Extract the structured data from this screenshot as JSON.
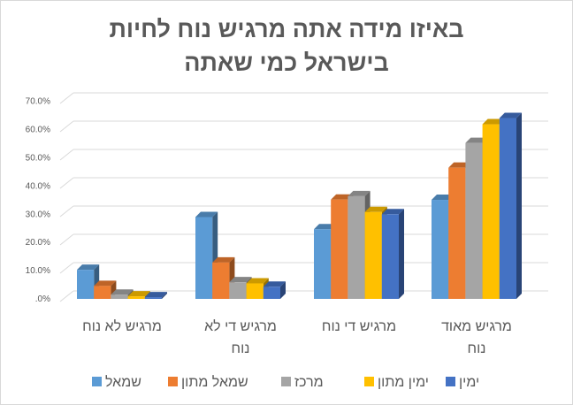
{
  "chart_data": {
    "type": "bar",
    "variant": "3d-clustered-column",
    "title": [
      "באיזו מידה אתה מרגיש נוח לחיות",
      "בישראל כמי שאתה"
    ],
    "categories": [
      [
        "מרגיש לא נוח"
      ],
      [
        "מרגיש די לא",
        "נוח"
      ],
      [
        "מרגיש די נוח"
      ],
      [
        "מרגיש מאוד",
        "נוח"
      ]
    ],
    "series": [
      {
        "name": "שמאל",
        "color": "#5b9bd5",
        "values": [
          10.3,
          29.0,
          24.7,
          35.1
        ]
      },
      {
        "name": "שמאל מתון",
        "color": "#ed7d31",
        "values": [
          4.6,
          12.9,
          35.2,
          46.5
        ]
      },
      {
        "name": "מרכז",
        "color": "#a5a5a5",
        "values": [
          1.5,
          5.9,
          36.4,
          55.3
        ]
      },
      {
        "name": "ימין מתון",
        "color": "#ffc000",
        "values": [
          0.9,
          5.5,
          30.8,
          61.9
        ]
      },
      {
        "name": "ימין",
        "color": "#4472c4",
        "values": [
          0.6,
          4.3,
          30.0,
          64.1
        ]
      }
    ],
    "yticks": [
      ".0%",
      "10.0%",
      "20.0%",
      "30.0%",
      "40.0%",
      "50.0%",
      "60.0%",
      "70.0%"
    ],
    "ylim": [
      0,
      70
    ],
    "grid": true,
    "legend": "bottom"
  }
}
